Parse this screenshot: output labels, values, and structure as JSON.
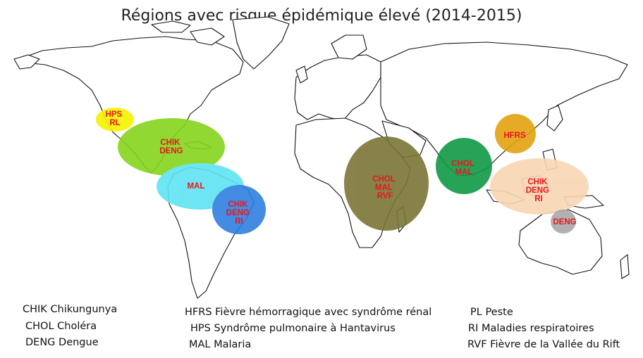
{
  "title": "Régions avec risque épidémique élevé  (2014-2015)",
  "colors": {
    "label": "#e8161b",
    "land_stroke": "#111111",
    "hps_rl": "#f4f200",
    "chik_deng_mexico": "#86d51c",
    "mal_south_america": "#5fe3f2",
    "chik_deng_ri_brazil": "#2f7fe0",
    "africa": "#7b7536",
    "india": "#0f9a45",
    "china": "#e3a20f",
    "southeast_asia": "#f8d6b3",
    "australia": "#a9a9a9"
  },
  "zones": [
    {
      "id": "hps-rl",
      "lines": [
        "HPS",
        "RL"
      ],
      "color_key": "hps_rl"
    },
    {
      "id": "chik-deng-central-america",
      "lines": [
        "CHIK",
        "DENG"
      ],
      "color_key": "chik_deng_mexico"
    },
    {
      "id": "mal-south-america",
      "lines": [
        "MAL"
      ],
      "color_key": "mal_south_america"
    },
    {
      "id": "chik-deng-ri-brazil",
      "lines": [
        "CHIK",
        "DENG",
        "RI"
      ],
      "color_key": "chik_deng_ri_brazil"
    },
    {
      "id": "chol-mal-rvf-africa",
      "lines": [
        "CHOL",
        "MAL",
        "RVF"
      ],
      "color_key": "africa"
    },
    {
      "id": "chol-mal-india",
      "lines": [
        "CHOL",
        "MAL"
      ],
      "color_key": "india"
    },
    {
      "id": "hfrs-china",
      "lines": [
        "HFRS"
      ],
      "color_key": "china"
    },
    {
      "id": "chik-deng-ri-southeast-asia",
      "lines": [
        "CHIK",
        "DENG",
        "RI"
      ],
      "color_key": "southeast_asia"
    },
    {
      "id": "deng-australia",
      "lines": [
        "DENG"
      ],
      "color_key": "australia"
    }
  ],
  "legend": {
    "col1": [
      {
        "code": "CHIK",
        "text": "Chikungunya"
      },
      {
        "code": "CHOL",
        "text": "Choléra"
      },
      {
        "code": "DENG",
        "text": " Dengue"
      }
    ],
    "col2": [
      {
        "code": "HFRS",
        "text": "Fièvre hémorragique  avec syndrôme  rénal"
      },
      {
        "code": "HPS",
        "text": "Syndrôme pulmonaire à Hantavirus"
      },
      {
        "code": "MAL",
        "text": "Malaria"
      }
    ],
    "col3": [
      {
        "code": "PL",
        "text": "Peste"
      },
      {
        "code": "RI",
        "text": " Maladies respiratoires"
      },
      {
        "code": "RVF",
        "text": "Fièvre de la Vallée du Rift"
      }
    ]
  }
}
